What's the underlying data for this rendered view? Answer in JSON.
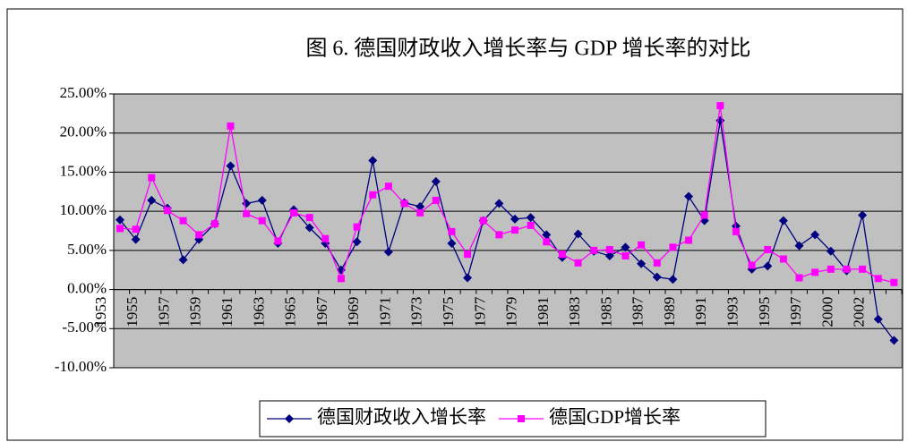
{
  "chart_data": {
    "type": "line",
    "title": "图 6. 德国财政收入增长率与 GDP 增长率的对比",
    "categories": [
      "1953",
      null,
      "1955",
      null,
      "1957",
      null,
      "1959",
      null,
      "1961",
      null,
      "1963",
      null,
      "1965",
      null,
      "1967",
      null,
      "1969",
      null,
      "1971",
      null,
      "1973",
      null,
      "1975",
      null,
      "1977",
      null,
      "1979",
      null,
      "1981",
      null,
      "1983",
      null,
      "1985",
      null,
      "1987",
      null,
      "1989",
      null,
      "1991",
      null,
      "1993",
      null,
      "1995",
      null,
      "1997",
      null,
      "2000",
      null,
      "2002",
      null
    ],
    "series": [
      {
        "name": "德国财政收入增长率",
        "color": "#000080",
        "marker": "diamond",
        "values": [
          8.9,
          6.4,
          11.4,
          10.4,
          3.8,
          6.4,
          8.4,
          15.8,
          11.0,
          11.4,
          5.9,
          10.2,
          7.9,
          5.9,
          2.5,
          6.1,
          16.5,
          4.8,
          11.1,
          10.6,
          13.8,
          5.9,
          1.5,
          8.8,
          11.0,
          9.0,
          9.2,
          7.0,
          4.1,
          7.1,
          4.9,
          4.3,
          5.4,
          3.3,
          1.6,
          1.3,
          11.9,
          8.8,
          21.6,
          8.1,
          2.6,
          3.0,
          8.8,
          5.6,
          7.0,
          4.9,
          2.4,
          9.5,
          -3.8,
          -6.5
        ]
      },
      {
        "name": "德国GDP增长率",
        "color": "#ff00ff",
        "marker": "square",
        "values": [
          7.8,
          7.7,
          14.3,
          10.1,
          8.8,
          7.0,
          8.4,
          20.9,
          9.7,
          8.8,
          6.2,
          9.8,
          9.2,
          6.5,
          1.4,
          8.0,
          12.1,
          13.2,
          11.0,
          9.8,
          11.4,
          7.4,
          4.5,
          8.8,
          7.0,
          7.6,
          8.2,
          6.1,
          4.5,
          3.4,
          5.0,
          5.1,
          4.3,
          5.7,
          3.4,
          5.4,
          6.3,
          9.5,
          23.5,
          7.4,
          3.1,
          5.1,
          3.9,
          1.5,
          2.2,
          2.6,
          2.6,
          2.6,
          1.4,
          0.9
        ]
      }
    ],
    "ylim": [
      -10,
      25
    ],
    "yticks": [
      {
        "value": -10,
        "label": "-10.00%"
      },
      {
        "value": -5,
        "label": "-5.00%"
      },
      {
        "value": 0,
        "label": "0.00%"
      },
      {
        "value": 5,
        "label": "5.00%"
      },
      {
        "value": 10,
        "label": "10.00%"
      },
      {
        "value": 15,
        "label": "15.00%"
      },
      {
        "value": 20,
        "label": "20.00%"
      },
      {
        "value": 25,
        "label": "25.00%"
      }
    ],
    "grid": true,
    "plot_background": "#c0c0c0",
    "legend": "bottom"
  }
}
